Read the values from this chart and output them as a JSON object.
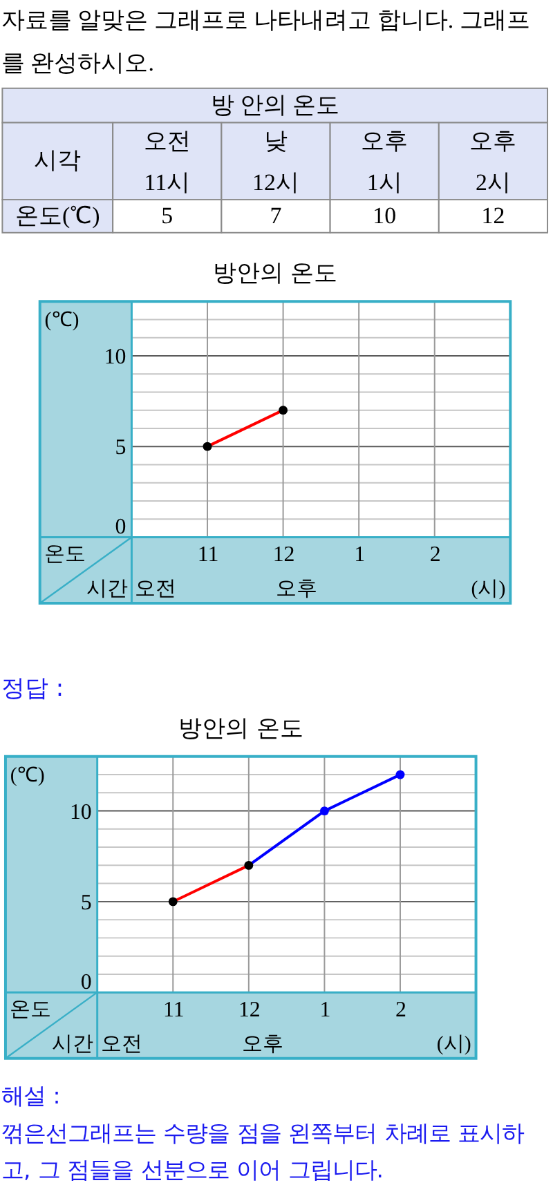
{
  "chart_data": [
    {
      "type": "other",
      "title": "방 안의 온도",
      "annotations": [
        "자료를 알맞은 그래프로 나타내려고 합니다. 그래프를 완성하시오."
      ],
      "xlabel": "시각",
      "ylabel": "온도(℃)",
      "categories": [
        "오전 11시",
        "낮 12시",
        "오후 1시",
        "오후 2시"
      ],
      "values": [
        5,
        7,
        10,
        12
      ],
      "data_labels": true
    },
    {
      "type": "line",
      "title": "방안의 온도",
      "xlabel": "(시)",
      "ylabel": "(℃)",
      "annotations": [
        "온도",
        "시간",
        "오전",
        "오후"
      ],
      "categories": [
        "11",
        "12",
        "1",
        "2"
      ],
      "series": [
        {
          "type": "line",
          "color": "#ff0000",
          "values": [
            5,
            7,
            null,
            null
          ]
        },
        {
          "type": "scatter",
          "color": "#000000",
          "marker": "circle",
          "values": [
            5,
            7,
            null,
            null
          ]
        }
      ],
      "ylim": [
        0,
        13
      ],
      "yticks": [
        0,
        {
          "value": 1,
          "label": null
        },
        {
          "value": 2,
          "label": null
        },
        {
          "value": 3,
          "label": null
        },
        {
          "value": 4,
          "label": null
        },
        5,
        {
          "value": 6,
          "label": null
        },
        {
          "value": 7,
          "label": null
        },
        {
          "value": 8,
          "label": null
        },
        {
          "value": 9,
          "label": null
        },
        10,
        {
          "value": 11,
          "label": null
        },
        {
          "value": 12,
          "label": null
        }
      ],
      "grid": true
    },
    {
      "type": "other",
      "color": "#1a1af0",
      "annotations": [
        "정답 :"
      ]
    },
    {
      "type": "line",
      "title": "방안의 온도",
      "xlabel": "(시)",
      "ylabel": "(℃)",
      "annotations": [
        "온도",
        "시간",
        "오전",
        "오후"
      ],
      "categories": [
        "11",
        "12",
        "1",
        "2"
      ],
      "series": [
        {
          "type": "line",
          "color": "#ff0000",
          "values": [
            5,
            7,
            null,
            null
          ]
        },
        {
          "type": "line",
          "color": "#0000ff",
          "values": [
            null,
            7,
            10,
            12
          ]
        },
        {
          "type": "scatter",
          "color": "#000000",
          "marker": "circle",
          "values": [
            5,
            7,
            null,
            null
          ]
        },
        {
          "type": "scatter",
          "color": "#0000ff",
          "marker": "circle",
          "values": [
            null,
            null,
            10,
            12
          ]
        }
      ],
      "ylim": [
        0,
        13
      ],
      "yticks": [
        0,
        {
          "value": 1,
          "label": null
        },
        {
          "value": 2,
          "label": null
        },
        {
          "value": 3,
          "label": null
        },
        {
          "value": 4,
          "label": null
        },
        5,
        {
          "value": 6,
          "label": null
        },
        {
          "value": 7,
          "label": null
        },
        {
          "value": 8,
          "label": null
        },
        {
          "value": 9,
          "label": null
        },
        10,
        {
          "value": 11,
          "label": null
        },
        {
          "value": 12,
          "label": null
        }
      ],
      "grid": true
    },
    {
      "type": "other",
      "color": "#1a1af0",
      "annotations": [
        "해설 :",
        "꺾은선그래프는 수량을 점을 왼쪽부터 차례로 표시하고, 그 점들을 선분으로 이어 그립니다."
      ]
    }
  ]
}
